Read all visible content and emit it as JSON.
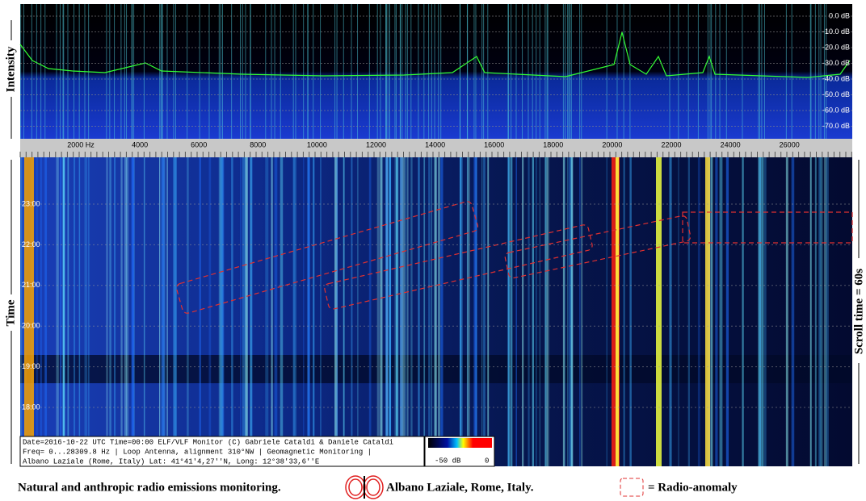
{
  "side_labels": {
    "intensity": "Intensity",
    "time": "Time",
    "scroll": "Scroll time = 60s"
  },
  "intensity_scale": [
    "0.0 dB",
    "-10.0 dB",
    "-20.0 dB",
    "-30.0 dB",
    "-40.0 dB",
    "-50.0 dB",
    "-60.0 dB",
    "-70.0 dB"
  ],
  "frequency_scale": [
    "2000 Hz",
    "4000",
    "6000",
    "8000",
    "10000",
    "12000",
    "14000",
    "16000",
    "18000",
    "20000",
    "22000",
    "24000",
    "26000"
  ],
  "time_scale": [
    "23:00",
    "22:00",
    "21:00",
    "20:00",
    "19:00",
    "18:00"
  ],
  "info_box": [
    "Date=2016-10-22 UTC Time=00:00 ELF/VLF Monitor (C) Gabriele Cataldi & Daniele Cataldi",
    "Freq= 0...28309.8 Hz | Loop Antenna, alignment 310°NW | Geomagnetic Monitoring |",
    "Albano Laziale (Rome, Italy) Lat: 41°41'4,27''N, Long: 12°38'33,6''E"
  ],
  "colorbar": {
    "min_label": "-50 dB",
    "max_label": "0"
  },
  "caption": {
    "left": "Natural and anthropic radio emissions monitoring.",
    "place": "Albano Laziale, Rome, Italy.",
    "legend": "= Radio-anomaly"
  }
}
